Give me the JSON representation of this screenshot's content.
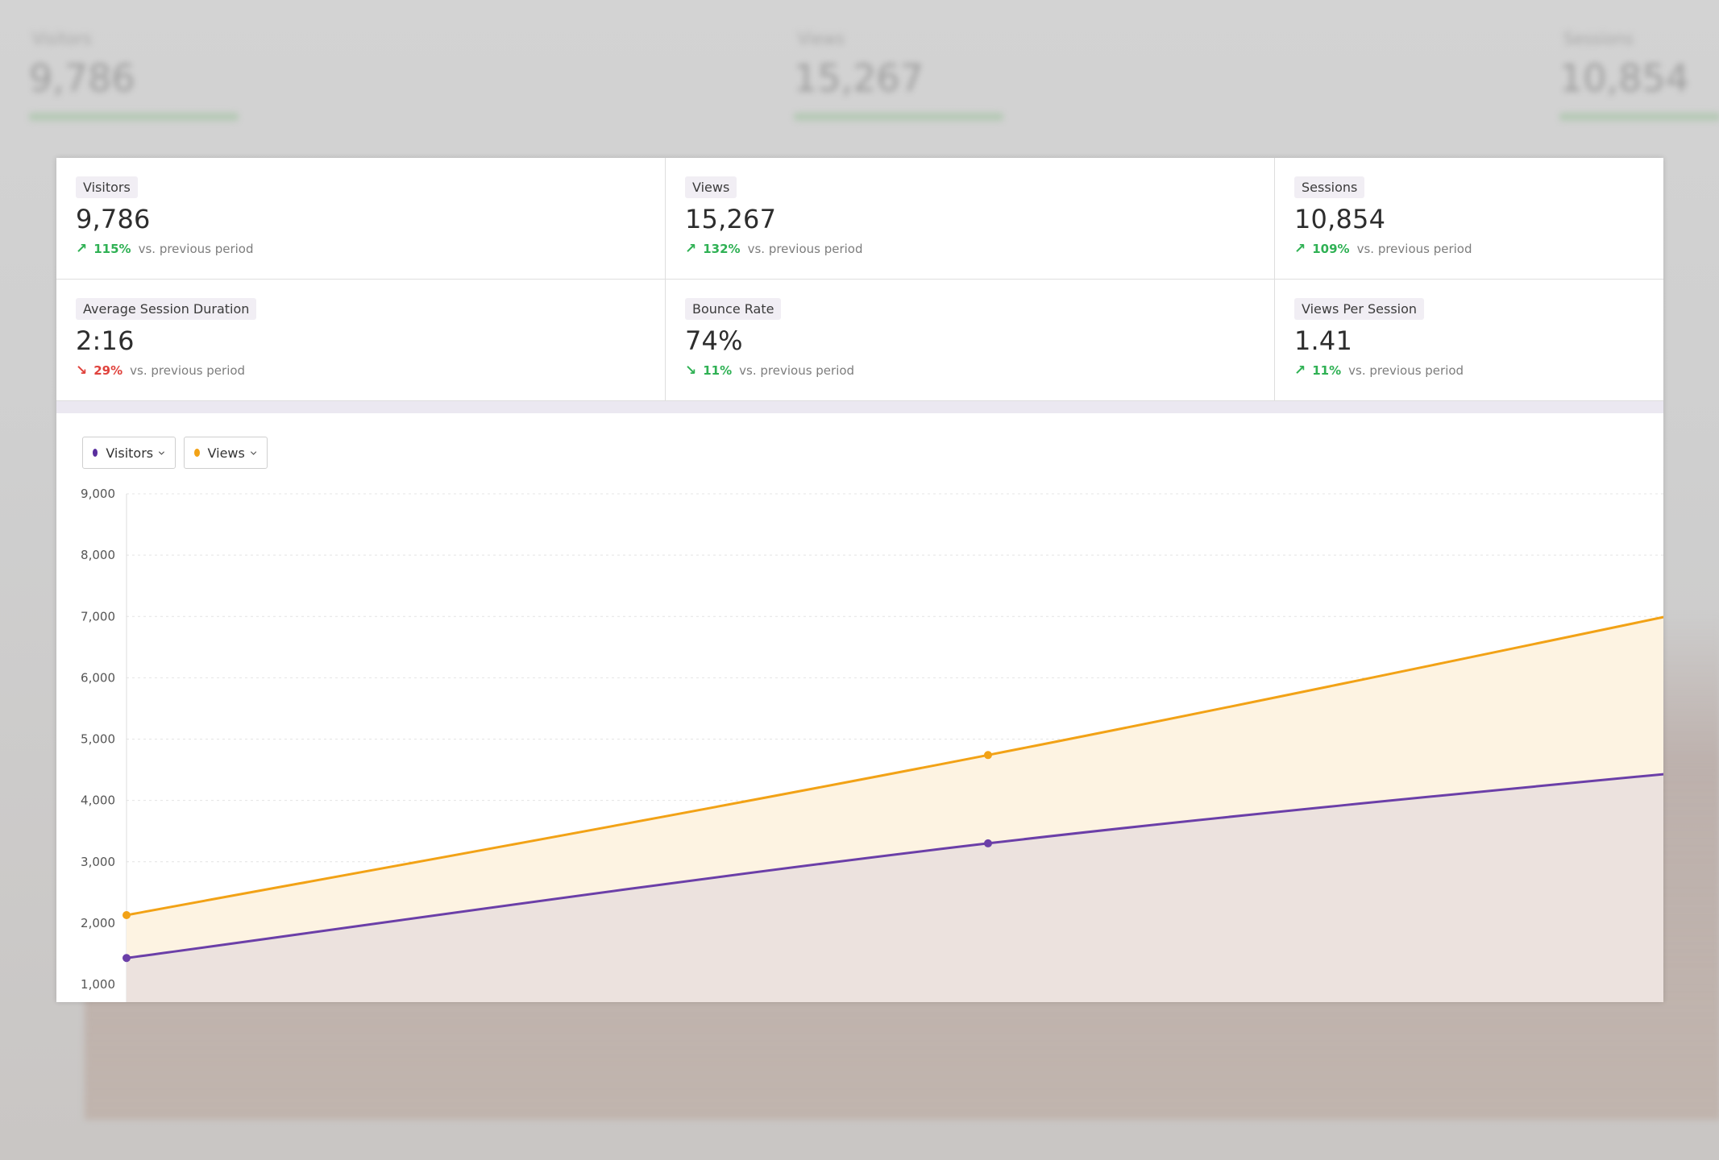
{
  "metrics": [
    {
      "label": "Visitors",
      "value": "9,786",
      "pct": "115%",
      "direction": "up",
      "suffix": "vs. previous period"
    },
    {
      "label": "Views",
      "value": "15,267",
      "pct": "132%",
      "direction": "up",
      "suffix": "vs. previous period"
    },
    {
      "label": "Sessions",
      "value": "10,854",
      "pct": "109%",
      "direction": "up",
      "suffix": "vs. previous period"
    },
    {
      "label": "Average Session Duration",
      "value": "2:16",
      "pct": "29%",
      "direction": "down-bad",
      "suffix": "vs. previous period"
    },
    {
      "label": "Bounce Rate",
      "value": "74%",
      "pct": "11%",
      "direction": "down-good",
      "suffix": "vs. previous period"
    },
    {
      "label": "Views Per Session",
      "value": "1.41",
      "pct": "11%",
      "direction": "up",
      "suffix": "vs. previous period"
    }
  ],
  "legend": {
    "visitors_label": "Visitors",
    "views_label": "Views"
  },
  "colors": {
    "visitors": "#6b3fa8",
    "views": "#f2a216",
    "positive": "#2fb154",
    "negative": "#e0433d"
  },
  "icons": {
    "up": "arrow-up-right-icon",
    "down": "arrow-down-right-icon",
    "dropdown": "chevron-down-icon"
  },
  "chart_data": {
    "type": "area",
    "ylim": [
      1000,
      9000
    ],
    "yticks": [
      "9,000",
      "8,000",
      "7,000",
      "6,000",
      "5,000",
      "4,000",
      "3,000",
      "2,000",
      "1,000"
    ],
    "x": [
      0,
      1,
      2
    ],
    "series": [
      {
        "name": "Views",
        "values": [
          2130,
          4740,
          7620
        ]
      },
      {
        "name": "Visitors",
        "values": [
          1430,
          3300,
          4720
        ]
      }
    ],
    "grid": true,
    "legend": "top-left"
  }
}
